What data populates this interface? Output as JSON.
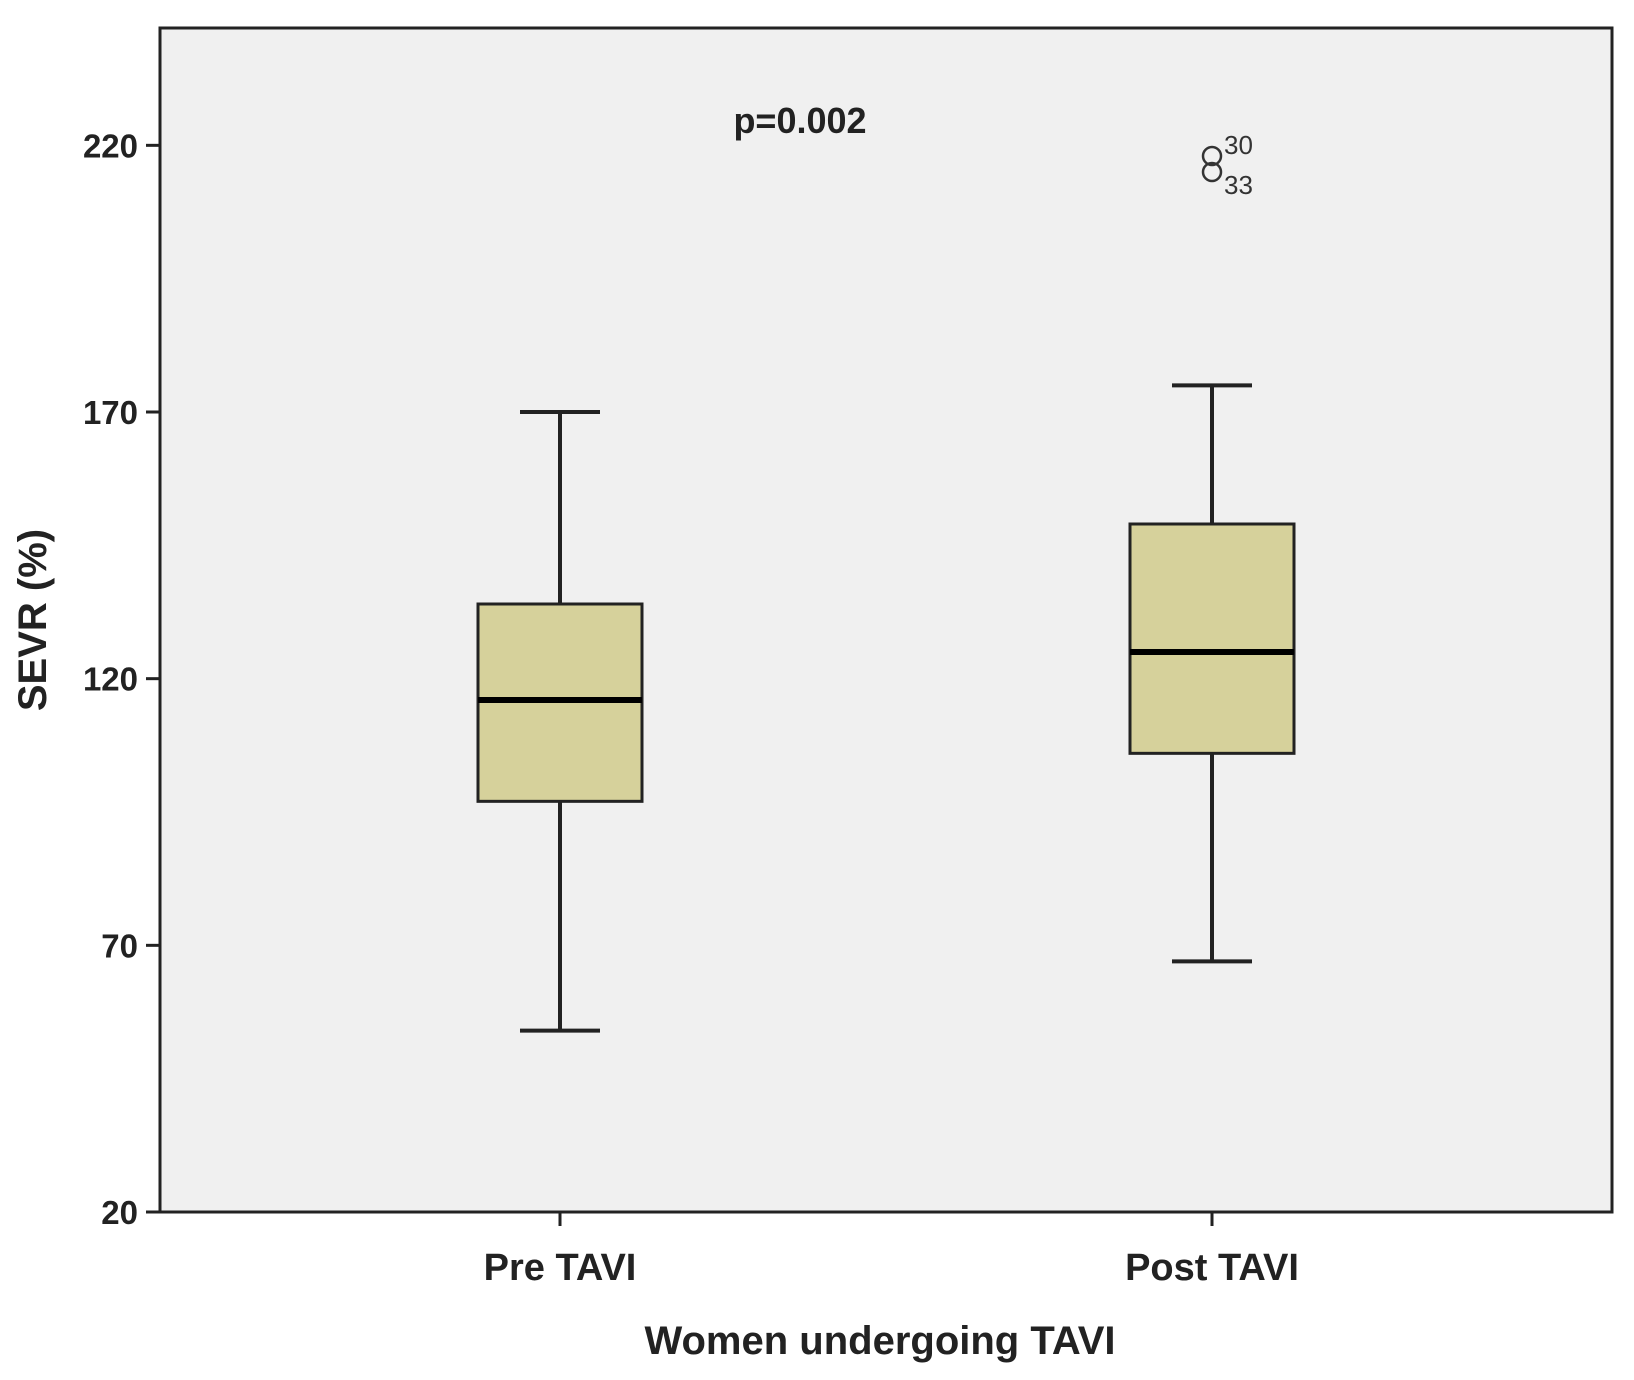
{
  "chart_data": {
    "type": "boxplot",
    "xlabel": "Women undergoing TAVI",
    "ylabel": "SEVR (%)",
    "ylim": [
      20,
      242
    ],
    "yticks": [
      20,
      70,
      120,
      170,
      220
    ],
    "categories": [
      "Pre TAVI",
      "Post TAVI"
    ],
    "boxes": [
      {
        "category": "Pre TAVI",
        "whisker_low": 54,
        "q1": 97,
        "median": 116,
        "q3": 134,
        "whisker_high": 170,
        "outliers": []
      },
      {
        "category": "Post TAVI",
        "whisker_low": 67,
        "q1": 106,
        "median": 125,
        "q3": 149,
        "whisker_high": 175,
        "outliers": [
          {
            "value": 218,
            "label": "30"
          },
          {
            "value": 215,
            "label": "33"
          }
        ]
      }
    ],
    "annotations": [
      {
        "text": "p=0.002"
      }
    ],
    "grid": false,
    "legend": "none",
    "colors": {
      "box_fill": "#d6d19b",
      "plot_background": "#f0f0f0",
      "stroke": "#222222"
    }
  }
}
